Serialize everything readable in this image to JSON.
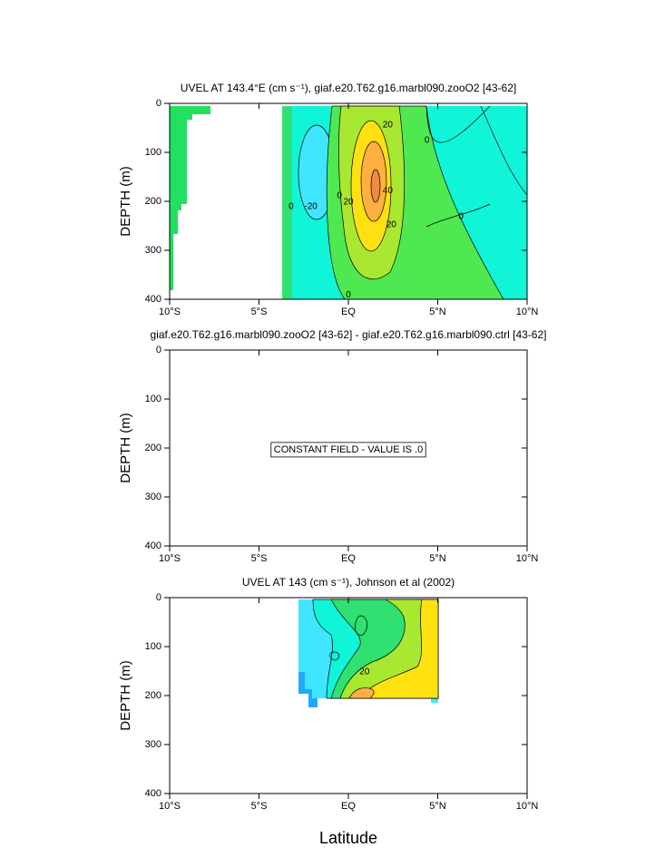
{
  "chart_data": [
    {
      "type": "contour",
      "title": "UVEL AT 143.4°E (cm s⁻¹), giaf.e20.T62.g16.marbl090.zooO2 [43-62]",
      "ylabel": "DEPTH (m)",
      "xlim": [
        -10,
        10
      ],
      "xticks": [
        {
          "value": -10,
          "label": "10°S"
        },
        {
          "value": -5,
          "label": "5°S"
        },
        {
          "value": 0,
          "label": "EQ"
        },
        {
          "value": 5,
          "label": "5°N"
        },
        {
          "value": 10,
          "label": "10°N"
        }
      ],
      "ylim": [
        400,
        0
      ],
      "yticks": [
        0,
        100,
        200,
        300,
        400
      ],
      "contour_labels": [
        {
          "value": 20,
          "lat": 2.2,
          "depth": 44
        },
        {
          "value": 0,
          "lat": 4.4,
          "depth": 76
        },
        {
          "value": -20,
          "lat": -2.1,
          "depth": 211
        },
        {
          "value": 20,
          "lat": 0,
          "depth": 202
        },
        {
          "value": 40,
          "lat": 2.2,
          "depth": 178
        },
        {
          "value": 20,
          "lat": 2.4,
          "depth": 248
        },
        {
          "value": 0,
          "lat": -3.2,
          "depth": 211
        },
        {
          "value": 0,
          "lat": -0.5,
          "depth": 189
        },
        {
          "value": 0,
          "lat": 6.3,
          "depth": 231
        },
        {
          "value": 0,
          "lat": 0,
          "depth": 391
        }
      ]
    },
    {
      "type": "contour",
      "title": "giaf.e20.T62.g16.marbl090.zooO2 [43-62] - giaf.e20.T62.g16.marbl090.ctrl [43-62]",
      "ylabel": "DEPTH (m)",
      "xlim": [
        -10,
        10
      ],
      "xticks": [
        {
          "value": -10,
          "label": "10°S"
        },
        {
          "value": -5,
          "label": "5°S"
        },
        {
          "value": 0,
          "label": "EQ"
        },
        {
          "value": 5,
          "label": "5°N"
        },
        {
          "value": 10,
          "label": "10°N"
        }
      ],
      "ylim": [
        400,
        0
      ],
      "yticks": [
        0,
        100,
        200,
        300,
        400
      ],
      "annotation": "CONSTANT FIELD - VALUE IS .0"
    },
    {
      "type": "contour",
      "title": "UVEL AT 143 (cm s⁻¹), Johnson et al (2002)",
      "ylabel": "DEPTH (m)",
      "xlabel": "Latitude",
      "xlim": [
        -10,
        10
      ],
      "xticks": [
        {
          "value": -10,
          "label": "10°S"
        },
        {
          "value": -5,
          "label": "5°S"
        },
        {
          "value": 0,
          "label": "EQ"
        },
        {
          "value": 5,
          "label": "5°N"
        },
        {
          "value": 10,
          "label": "10°N"
        }
      ],
      "ylim": [
        400,
        0
      ],
      "yticks": [
        0,
        100,
        200,
        300,
        400
      ],
      "contour_labels": [
        {
          "value": 20,
          "lat": 0.9,
          "depth": 152
        }
      ]
    }
  ]
}
